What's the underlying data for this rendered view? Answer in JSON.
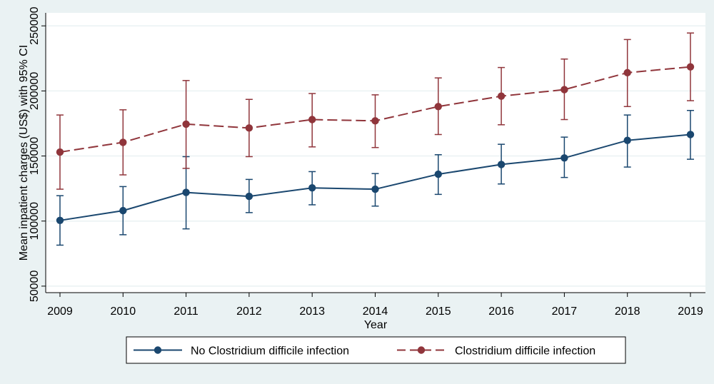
{
  "colors": {
    "background": "#eaf2f3",
    "plot_background": "#ffffff",
    "gridline": "#eaf2f3",
    "series_no_cdi": "#1a476f",
    "series_cdi": "#90353b"
  },
  "chart_data": {
    "type": "line",
    "xlabel": "Year",
    "ylabel": "Mean inpatient charges (US$) with 95% CI",
    "x": [
      2009,
      2010,
      2011,
      2012,
      2013,
      2014,
      2015,
      2016,
      2017,
      2018,
      2019
    ],
    "x_ticks": [
      "2009",
      "2010",
      "2011",
      "2012",
      "2013",
      "2014",
      "2015",
      "2016",
      "2017",
      "2018",
      "2019"
    ],
    "y_ticks": [
      "50000",
      "100000",
      "150000",
      "200000",
      "250000"
    ],
    "y_tick_values": [
      50000,
      100000,
      150000,
      200000,
      250000
    ],
    "ylim": [
      45000,
      260000
    ],
    "grid": true,
    "legend_position": "bottom",
    "series": [
      {
        "name": "No Clostridium difficile infection",
        "line_style": "solid",
        "color": "#1a476f",
        "values": [
          100500,
          108000,
          122000,
          119000,
          125500,
          124500,
          136000,
          143500,
          148500,
          162000,
          166500
        ],
        "ci_low": [
          81500,
          89500,
          94000,
          106500,
          112500,
          111500,
          120500,
          128500,
          133500,
          141500,
          147500
        ],
        "ci_high": [
          119500,
          126500,
          149500,
          132000,
          138000,
          136500,
          151000,
          159000,
          164500,
          181500,
          185000
        ]
      },
      {
        "name": "Clostridium difficile infection",
        "line_style": "dashed",
        "color": "#90353b",
        "values": [
          153000,
          160500,
          174500,
          171500,
          178000,
          177000,
          188000,
          196000,
          201000,
          214000,
          218500
        ],
        "ci_low": [
          124500,
          135500,
          140500,
          149500,
          157000,
          156500,
          166500,
          174000,
          178000,
          188000,
          192500
        ],
        "ci_high": [
          181500,
          185500,
          208000,
          193500,
          198000,
          197000,
          210000,
          218000,
          224500,
          239500,
          244500
        ]
      }
    ]
  }
}
